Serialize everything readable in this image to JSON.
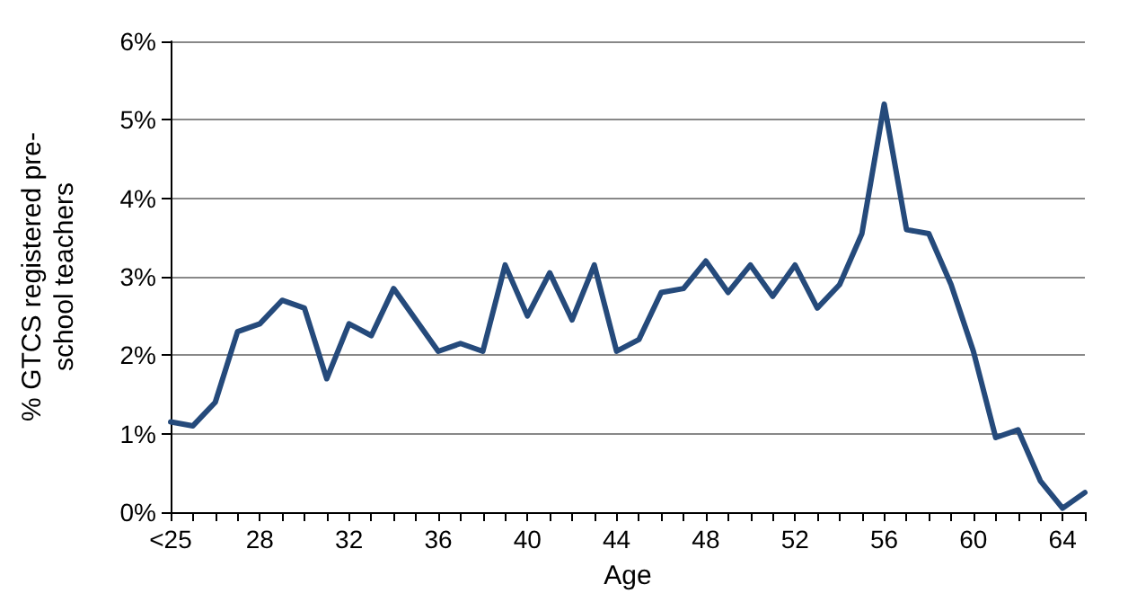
{
  "chart_data": {
    "type": "line",
    "xlabel": "Age",
    "ylabel": "% GTCS registered pre-\nschool teachers",
    "categories": [
      "<25",
      null,
      null,
      null,
      "28",
      null,
      null,
      null,
      "32",
      null,
      null,
      null,
      "36",
      null,
      null,
      null,
      "40",
      null,
      null,
      null,
      "44",
      null,
      null,
      null,
      "48",
      null,
      null,
      null,
      "52",
      null,
      null,
      null,
      "56",
      null,
      null,
      null,
      "60",
      null,
      null,
      null,
      "64",
      null
    ],
    "series": [
      {
        "color": "#254a7b",
        "values": [
          1.15,
          1.1,
          1.4,
          2.3,
          2.4,
          2.7,
          2.6,
          1.7,
          2.4,
          2.25,
          2.85,
          2.45,
          2.05,
          2.15,
          2.05,
          3.15,
          2.5,
          3.05,
          2.45,
          3.15,
          2.05,
          2.2,
          2.8,
          2.85,
          3.2,
          2.8,
          3.15,
          2.75,
          3.15,
          2.6,
          2.9,
          3.55,
          5.2,
          3.6,
          3.55,
          2.9,
          2.05,
          0.95,
          1.05,
          0.4,
          0.05,
          0.25
        ]
      }
    ],
    "ylim": [
      0,
      6
    ],
    "yticks": [
      {
        "value": 0,
        "label": "0%"
      },
      {
        "value": 1,
        "label": "1%"
      },
      {
        "value": 2,
        "label": "2%"
      },
      {
        "value": 3,
        "label": "3%"
      },
      {
        "value": 4,
        "label": "4%"
      },
      {
        "value": 5,
        "label": "5%"
      },
      {
        "value": 6,
        "label": "6%"
      }
    ],
    "grid": "y",
    "marker": "none",
    "line_style": "solid"
  }
}
